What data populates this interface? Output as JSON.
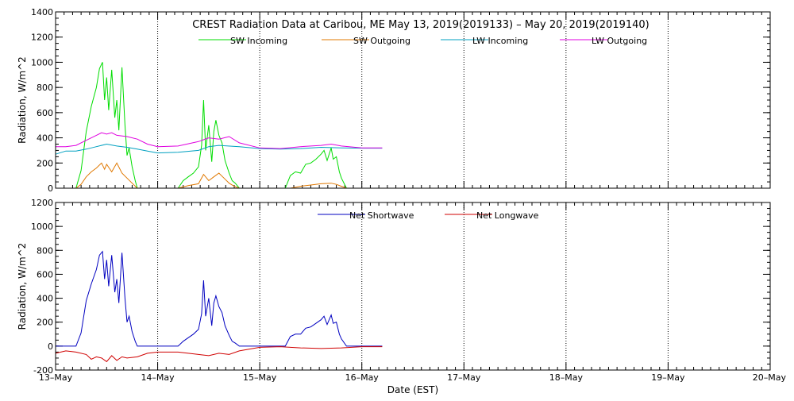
{
  "page": {
    "title": "CREST Radiation Data at Caribou, ME   May 13, 2019(2019133) – May 20, 2019(2019140)",
    "xlabel": "Date (EST)"
  },
  "colors": {
    "sw_in": "#00dd00",
    "sw_out": "#e07800",
    "lw_in": "#00a0c0",
    "lw_out": "#e000e0",
    "net_sw": "#0000c0",
    "net_lw": "#d00000",
    "axis": "#000000",
    "grid": "#000000"
  },
  "chart_data": [
    {
      "type": "line",
      "ylabel": "Radiation, W/m^2",
      "ylim": [
        0,
        1400
      ],
      "yticks": [
        0,
        200,
        400,
        600,
        800,
        1000,
        1200,
        1400
      ],
      "xlim": [
        13,
        20
      ],
      "xticks": [
        {
          "v": 13,
          "label": "13–May"
        },
        {
          "v": 14,
          "label": "14–May"
        },
        {
          "v": 15,
          "label": "15–May"
        },
        {
          "v": 16,
          "label": "16–May"
        },
        {
          "v": 17,
          "label": "17–May"
        },
        {
          "v": 18,
          "label": "18–May"
        },
        {
          "v": 19,
          "label": "19–May"
        },
        {
          "v": 20,
          "label": "20–May"
        }
      ],
      "grid": true,
      "legend": "top",
      "series": [
        {
          "name": "SW Incoming",
          "color_key": "sw_in",
          "x": [
            13.0,
            13.2,
            13.25,
            13.3,
            13.35,
            13.4,
            13.43,
            13.46,
            13.48,
            13.5,
            13.52,
            13.55,
            13.58,
            13.6,
            13.62,
            13.65,
            13.68,
            13.7,
            13.72,
            13.75,
            13.78,
            13.8,
            14.2,
            14.25,
            14.3,
            14.35,
            14.4,
            14.43,
            14.45,
            14.47,
            14.5,
            14.53,
            14.55,
            14.57,
            14.6,
            14.63,
            14.66,
            14.7,
            14.73,
            14.76,
            14.8,
            15.0,
            15.25,
            15.3,
            15.35,
            15.4,
            15.45,
            15.5,
            15.55,
            15.6,
            15.63,
            15.66,
            15.7,
            15.72,
            15.75,
            15.78,
            15.8,
            15.85,
            16.0,
            16.2
          ],
          "y": [
            0,
            0,
            140,
            450,
            650,
            800,
            950,
            1000,
            700,
            880,
            620,
            940,
            560,
            700,
            460,
            960,
            500,
            260,
            320,
            170,
            60,
            0,
            0,
            60,
            90,
            120,
            170,
            340,
            700,
            300,
            500,
            210,
            450,
            540,
            420,
            360,
            220,
            120,
            60,
            40,
            0,
            0,
            0,
            100,
            130,
            120,
            190,
            200,
            230,
            270,
            300,
            220,
            320,
            230,
            250,
            130,
            80,
            0,
            0,
            0
          ]
        },
        {
          "name": "SW Outgoing",
          "color_key": "sw_out",
          "x": [
            13.0,
            13.2,
            13.25,
            13.3,
            13.35,
            13.4,
            13.45,
            13.48,
            13.5,
            13.55,
            13.6,
            13.65,
            13.7,
            13.75,
            13.8,
            14.2,
            14.3,
            14.4,
            14.45,
            14.5,
            14.55,
            14.6,
            14.65,
            14.7,
            14.75,
            14.8,
            15.0,
            15.3,
            15.4,
            15.5,
            15.6,
            15.7,
            15.75,
            15.8,
            15.85,
            16.0,
            16.2
          ],
          "y": [
            0,
            0,
            30,
            90,
            130,
            160,
            200,
            150,
            190,
            130,
            200,
            120,
            80,
            40,
            0,
            0,
            20,
            35,
            110,
            60,
            90,
            120,
            80,
            40,
            15,
            0,
            0,
            0,
            15,
            25,
            35,
            40,
            30,
            15,
            0,
            0,
            0
          ]
        },
        {
          "name": "LW Incoming",
          "color_key": "lw_in",
          "x": [
            13.0,
            13.1,
            13.2,
            13.3,
            13.4,
            13.5,
            13.6,
            13.7,
            13.8,
            13.9,
            14.0,
            14.2,
            14.4,
            14.5,
            14.6,
            14.8,
            15.0,
            15.2,
            15.4,
            15.6,
            15.8,
            16.0,
            16.2
          ],
          "y": [
            270,
            295,
            295,
            310,
            330,
            350,
            335,
            325,
            310,
            295,
            280,
            285,
            300,
            330,
            340,
            330,
            315,
            310,
            315,
            325,
            320,
            318,
            318
          ]
        },
        {
          "name": "LW Outgoing",
          "color_key": "lw_out",
          "x": [
            13.0,
            13.1,
            13.2,
            13.3,
            13.4,
            13.45,
            13.5,
            13.55,
            13.6,
            13.7,
            13.8,
            13.9,
            14.0,
            14.2,
            14.4,
            14.5,
            14.6,
            14.7,
            14.8,
            15.0,
            15.2,
            15.4,
            15.6,
            15.7,
            15.8,
            16.0,
            16.2
          ],
          "y": [
            330,
            330,
            340,
            380,
            420,
            440,
            430,
            440,
            420,
            410,
            390,
            350,
            330,
            335,
            370,
            400,
            390,
            410,
            360,
            320,
            315,
            330,
            340,
            350,
            335,
            320,
            320
          ]
        }
      ]
    },
    {
      "type": "line",
      "ylabel": "Radiation, W/m^2",
      "ylim": [
        -200,
        1200
      ],
      "yticks": [
        -200,
        0,
        200,
        400,
        600,
        800,
        1000,
        1200
      ],
      "xlim": [
        13,
        20
      ],
      "xticks": [
        {
          "v": 13,
          "label": "13–May"
        },
        {
          "v": 14,
          "label": "14–May"
        },
        {
          "v": 15,
          "label": "15–May"
        },
        {
          "v": 16,
          "label": "16–May"
        },
        {
          "v": 17,
          "label": "17–May"
        },
        {
          "v": 18,
          "label": "18–May"
        },
        {
          "v": 19,
          "label": "19–May"
        },
        {
          "v": 20,
          "label": "20–May"
        }
      ],
      "grid": true,
      "legend": "top",
      "series": [
        {
          "name": "Net Shortwave",
          "color_key": "net_sw",
          "x": [
            13.0,
            13.2,
            13.25,
            13.3,
            13.35,
            13.4,
            13.43,
            13.46,
            13.48,
            13.5,
            13.52,
            13.55,
            13.58,
            13.6,
            13.62,
            13.65,
            13.68,
            13.7,
            13.72,
            13.75,
            13.78,
            13.8,
            14.2,
            14.25,
            14.3,
            14.35,
            14.4,
            14.43,
            14.45,
            14.47,
            14.5,
            14.53,
            14.55,
            14.57,
            14.6,
            14.63,
            14.66,
            14.7,
            14.73,
            14.76,
            14.8,
            15.0,
            15.25,
            15.3,
            15.35,
            15.4,
            15.45,
            15.5,
            15.55,
            15.6,
            15.63,
            15.66,
            15.7,
            15.72,
            15.75,
            15.78,
            15.8,
            15.85,
            16.0,
            16.2
          ],
          "y": [
            0,
            0,
            110,
            380,
            520,
            640,
            760,
            790,
            560,
            720,
            500,
            760,
            450,
            560,
            360,
            780,
            400,
            200,
            250,
            120,
            40,
            0,
            0,
            40,
            70,
            100,
            140,
            270,
            550,
            250,
            400,
            170,
            360,
            420,
            330,
            280,
            170,
            90,
            40,
            25,
            0,
            0,
            0,
            80,
            100,
            100,
            150,
            160,
            190,
            220,
            250,
            180,
            260,
            190,
            200,
            100,
            60,
            0,
            0,
            0
          ]
        },
        {
          "name": "Net Longwave",
          "color_key": "net_lw",
          "x": [
            13.0,
            13.1,
            13.2,
            13.3,
            13.35,
            13.4,
            13.45,
            13.5,
            13.55,
            13.6,
            13.65,
            13.7,
            13.8,
            13.9,
            14.0,
            14.2,
            14.4,
            14.5,
            14.6,
            14.7,
            14.8,
            15.0,
            15.2,
            15.4,
            15.6,
            15.8,
            16.0,
            16.2
          ],
          "y": [
            -60,
            -40,
            -50,
            -70,
            -110,
            -90,
            -100,
            -130,
            -80,
            -120,
            -90,
            -100,
            -90,
            -60,
            -50,
            -50,
            -70,
            -80,
            -60,
            -70,
            -40,
            -10,
            -5,
            -15,
            -20,
            -15,
            -5,
            -5
          ]
        }
      ]
    }
  ]
}
